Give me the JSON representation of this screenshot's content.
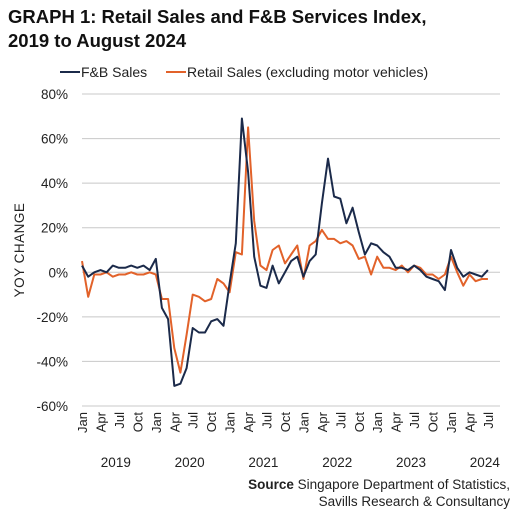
{
  "title_lines": [
    "GRAPH 1: Retail Sales and F&B Services Index,",
    "2019 to August 2024"
  ],
  "source": {
    "label": "Source",
    "line1": "Singapore Department of Statistics,",
    "line2": "Savills Research & Consultancy"
  },
  "chart_data": {
    "type": "line",
    "ylabel": "YOY CHANGE",
    "ylim": [
      -60,
      80
    ],
    "yticks": [
      -60,
      -40,
      -20,
      0,
      20,
      40,
      60,
      80
    ],
    "ytick_labels": [
      "-60%",
      "-40%",
      "-20%",
      "0%",
      "20%",
      "40%",
      "60%",
      "80%"
    ],
    "x_tick_labels": [
      "Jan",
      "Apr",
      "Jul",
      "Oct",
      "Jan",
      "Apr",
      "Jul",
      "Oct",
      "Jan",
      "Apr",
      "Jul",
      "Oct",
      "Jan",
      "Apr",
      "Jul",
      "Oct",
      "Jan",
      "Apr",
      "Jul",
      "Oct",
      "Jan",
      "Apr",
      "Jul"
    ],
    "year_labels": [
      "2019",
      "2020",
      "2021",
      "2022",
      "2023",
      "2024"
    ],
    "x_range": [
      "2019-01",
      "2024-08"
    ],
    "grid": "horizontal",
    "legend_position": "top",
    "series": [
      {
        "name": "F&B Sales",
        "color": "#1b2a4a",
        "values": [
          3,
          -2,
          0,
          1,
          0,
          3,
          2,
          2,
          3,
          2,
          3,
          1,
          6,
          -16,
          -21,
          -51,
          -50,
          -43,
          -25,
          -27,
          -27,
          -22,
          -21,
          -24,
          -5,
          13,
          69,
          45,
          7,
          -6,
          -7,
          3,
          -5,
          0,
          5,
          7,
          -2,
          5,
          8,
          31,
          51,
          34,
          33,
          22,
          29,
          18,
          8,
          13,
          12,
          9,
          7,
          2,
          2,
          1,
          3,
          1,
          -2,
          -3,
          -4,
          -8,
          10,
          2,
          -2,
          0,
          -1,
          -2,
          1
        ]
      },
      {
        "name": "Retail Sales (excluding motor vehicles)",
        "color": "#e2622a",
        "values": [
          5,
          -11,
          -1,
          -1,
          0,
          -2,
          -1,
          -1,
          0,
          -1,
          -1,
          0,
          -1,
          -12,
          -12,
          -34,
          -45,
          -28,
          -10,
          -11,
          -13,
          -12,
          -3,
          -5,
          -9,
          9,
          8,
          65,
          23,
          3,
          1,
          10,
          12,
          4,
          8,
          12,
          -3,
          12,
          14,
          19,
          15,
          15,
          13,
          14,
          12,
          6,
          7,
          -1,
          7,
          2,
          2,
          1,
          3,
          0,
          3,
          2,
          -1,
          -1,
          -3,
          -1,
          7,
          0,
          -6,
          -1,
          -4,
          -3,
          -3
        ]
      }
    ]
  }
}
